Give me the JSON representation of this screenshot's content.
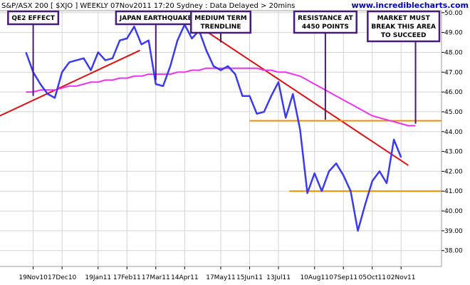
{
  "chart_data": {
    "type": "line",
    "title": "S&P/ASX 200 [ $XJO ] WEEKLY 07Nov2011 17:20 Sydney : Data Delayed > 20mins",
    "site": "www.incrediblecharts.com",
    "xlabel": "",
    "ylabel": "",
    "ylim": [
      37.2,
      50.1
    ],
    "y_ticks": [
      {
        "value": 38,
        "label": "38.00"
      },
      {
        "value": 39,
        "label": "39.00"
      },
      {
        "value": 40,
        "label": "40.00"
      },
      {
        "value": 41,
        "label": "41.00"
      },
      {
        "value": 42,
        "label": "42.00"
      },
      {
        "value": 43,
        "label": "43.00"
      },
      {
        "value": 44,
        "label": "44.00"
      },
      {
        "value": 45,
        "label": "45.00"
      },
      {
        "value": 46,
        "label": "46.00"
      },
      {
        "value": 47,
        "label": "47.00"
      },
      {
        "value": 48,
        "label": "48.00"
      },
      {
        "value": 49,
        "label": "49.00"
      },
      {
        "value": 50,
        "label": "50.00"
      }
    ],
    "x_ticks": [
      {
        "index": 1,
        "label": "19Nov10"
      },
      {
        "index": 5,
        "label": "17Dec10"
      },
      {
        "index": 10,
        "label": "19Jan11"
      },
      {
        "index": 14,
        "label": "17Feb11"
      },
      {
        "index": 18,
        "label": "17Mar11"
      },
      {
        "index": 22,
        "label": "14Apr11"
      },
      {
        "index": 27,
        "label": "17May11"
      },
      {
        "index": 31,
        "label": "15Jun11"
      },
      {
        "index": 35,
        "label": "13Jul11"
      },
      {
        "index": 40,
        "label": "10Aug11"
      },
      {
        "index": 44,
        "label": "07Sep11"
      },
      {
        "index": 48,
        "label": "05Oct11"
      },
      {
        "index": 52,
        "label": "02Nov11"
      }
    ],
    "x_range": [
      -3.6,
      57.6
    ],
    "grid": true,
    "series": [
      {
        "values": [
          48.0,
          47.0,
          46.4,
          45.9,
          45.7,
          47.0,
          47.5,
          47.6,
          47.7,
          47.1,
          48.0,
          47.6,
          47.7,
          48.6,
          48.7,
          49.3,
          48.4,
          48.6,
          46.4,
          46.3,
          47.3,
          48.6,
          49.4,
          48.7,
          49.1,
          48.1,
          47.3,
          47.1,
          47.3,
          46.9,
          45.8,
          45.8,
          44.9,
          45.0,
          45.8,
          46.5,
          44.7,
          45.9,
          44.1,
          40.9,
          41.9,
          41.0,
          42.0,
          42.4,
          41.8,
          41.0,
          39.0,
          40.3,
          41.5,
          42.0,
          41.4,
          43.6,
          42.7
        ],
        "color": "#3a3af2"
      },
      {
        "values": [
          46.0,
          46.0,
          46.1,
          46.1,
          46.1,
          46.2,
          46.3,
          46.3,
          46.4,
          46.5,
          46.5,
          46.6,
          46.6,
          46.7,
          46.7,
          46.8,
          46.8,
          46.9,
          46.9,
          46.9,
          46.9,
          47.0,
          47.0,
          47.1,
          47.1,
          47.2,
          47.2,
          47.2,
          47.2,
          47.2,
          47.2,
          47.2,
          47.2,
          47.1,
          47.1,
          47.0,
          47.0,
          46.9,
          46.8,
          46.6,
          46.4,
          46.2,
          46.0,
          45.8,
          45.6,
          45.4,
          45.2,
          45.0,
          44.8,
          44.7,
          44.6,
          44.5,
          44.4,
          44.3,
          44.3
        ],
        "color": "#ee33ee"
      }
    ],
    "trendlines": [
      {
        "from": [
          -3.6,
          44.8
        ],
        "to": [
          15.8,
          48.1
        ],
        "color": "#e01010"
      },
      {
        "from": [
          24.0,
          49.3
        ],
        "to": [
          53.0,
          42.3
        ],
        "color": "#e01010"
      },
      {
        "from": [
          31.0,
          44.55
        ],
        "to": [
          57.6,
          44.55
        ],
        "color": "#f08c00"
      },
      {
        "from": [
          36.5,
          41.0
        ],
        "to": [
          57.6,
          41.0
        ],
        "color": "#f08c00"
      }
    ],
    "annotations": [
      {
        "lines": [
          "QE2 EFFECT"
        ],
        "target": [
          1.0,
          45.8
        ]
      },
      {
        "lines": [
          "JAPAN EARTHQUAKE"
        ],
        "target": [
          18.0,
          46.6
        ]
      },
      {
        "lines": [
          "MEDIUM TERM",
          "TRENDLINE"
        ],
        "target": [
          27.0,
          48.5
        ]
      },
      {
        "lines": [
          "RESISTANCE AT",
          "4450 POINTS"
        ],
        "target": [
          41.5,
          44.6
        ]
      },
      {
        "lines": [
          "MARKET MUST",
          "BREAK THIS AREA",
          "TO SUCCEED"
        ],
        "target": [
          54.0,
          44.4
        ]
      }
    ]
  }
}
